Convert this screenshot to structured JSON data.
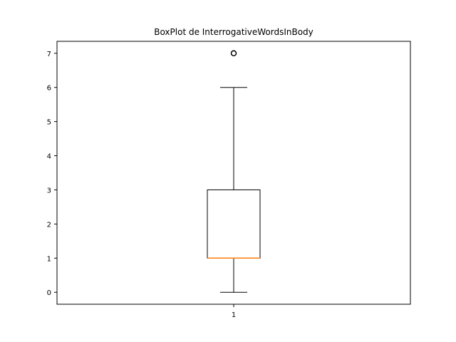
{
  "chart_data": {
    "type": "box",
    "title": "BoxPlot de InterrogativeWordsInBody",
    "xlabel": "",
    "ylabel": "",
    "categories": [
      "1"
    ],
    "ylim": [
      -0.35,
      7.35
    ],
    "yticks": [
      0,
      1,
      2,
      3,
      4,
      5,
      6,
      7
    ],
    "grid": false,
    "boxes": [
      {
        "category": "1",
        "whisker_low": 0,
        "q1": 1,
        "median": 1,
        "q3": 3,
        "whisker_high": 6,
        "outliers": [
          7
        ]
      }
    ],
    "colors": {
      "box": "#000000",
      "median": "#ff7f0e",
      "outlier": "#000000"
    }
  }
}
